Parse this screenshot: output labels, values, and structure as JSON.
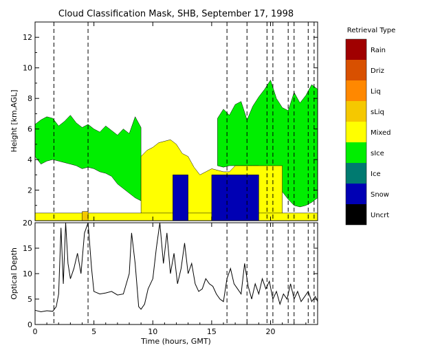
{
  "chart_data": [
    {
      "type": "mask",
      "title": "Cloud Classification Mask, SHB, September 17, 1998",
      "xlabel": "",
      "ylabel": "Height [km,AGL]",
      "xlim": [
        0,
        24
      ],
      "ylim": [
        0,
        13
      ],
      "yticks": [
        2,
        4,
        6,
        8,
        10,
        12
      ],
      "vertical_dashed_lines_hours": [
        1.6,
        4.5,
        16.3,
        18.0,
        19.7,
        20.2,
        21.5,
        22.0,
        23.2,
        23.7
      ],
      "colorbar": {
        "title": "Retrieval Type",
        "categories": [
          {
            "label": "Rain",
            "color": "#a00000"
          },
          {
            "label": "Driz",
            "color": "#d85000"
          },
          {
            "label": "Liq",
            "color": "#ff8800"
          },
          {
            "label": "sLiq",
            "color": "#f5c800"
          },
          {
            "label": "Mixed",
            "color": "#ffff00"
          },
          {
            "label": "sIce",
            "color": "#00ee00"
          },
          {
            "label": "Ice",
            "color": "#007a70"
          },
          {
            "label": "Snow",
            "color": "#0000b4"
          },
          {
            "label": "Uncrt",
            "color": "#000000"
          }
        ]
      },
      "regions": [
        {
          "class": "sIce",
          "x": [
            0,
            0.5,
            1,
            1.5,
            2,
            2.5,
            3,
            3.5,
            4,
            4.5,
            5,
            5.5,
            6,
            6.5,
            7,
            7.5,
            8,
            8.5,
            9,
            9,
            8.5,
            8,
            7.5,
            7,
            6.5,
            6,
            5.5,
            5,
            4.5,
            4,
            3.5,
            3,
            2.5,
            2,
            1.5,
            1,
            0.5,
            0
          ],
          "y": [
            6.3,
            6.6,
            6.8,
            6.7,
            6.2,
            6.5,
            6.9,
            6.4,
            6.1,
            6.3,
            6.0,
            5.8,
            6.2,
            5.9,
            5.6,
            6.0,
            5.7,
            6.8,
            6.1,
            1.3,
            1.5,
            1.8,
            2.1,
            2.4,
            2.9,
            3.1,
            3.2,
            3.4,
            3.5,
            3.4,
            3.6,
            3.7,
            3.8,
            3.9,
            4.0,
            3.9,
            3.7,
            4.2
          ]
        },
        {
          "class": "sIce",
          "x": [
            15.5,
            16,
            16.5,
            17,
            17.5,
            18,
            18.5,
            19,
            19.5,
            20,
            20.5,
            21,
            21.5,
            22,
            22.5,
            23,
            23.5,
            24,
            24,
            23.5,
            23,
            22.5,
            22,
            21.5,
            21,
            20.5,
            20,
            19.5,
            19,
            18.5,
            18,
            17.5,
            17,
            16.5,
            16,
            15.5
          ],
          "y": [
            6.7,
            7.3,
            6.9,
            7.6,
            7.8,
            6.6,
            7.5,
            8.1,
            8.6,
            9.2,
            8.0,
            7.4,
            7.2,
            8.4,
            7.7,
            8.2,
            8.9,
            8.6,
            1.5,
            1.2,
            1.0,
            0.9,
            1.0,
            1.4,
            1.9,
            2.4,
            3.0,
            3.4,
            3.6,
            3.6,
            3.6,
            3.6,
            3.6,
            3.6,
            3.5,
            3.6
          ]
        },
        {
          "class": "Mixed",
          "x": [
            9,
            9.5,
            10,
            10.5,
            11,
            11.5,
            12,
            12.5,
            13,
            13.5,
            14,
            14.5,
            15,
            15.5,
            16,
            16.5,
            17,
            17.5,
            18,
            18.5,
            19,
            19.5,
            20,
            20.5,
            21,
            21,
            9,
            9
          ],
          "y": [
            4.2,
            4.6,
            4.8,
            5.1,
            5.2,
            5.3,
            5.0,
            4.4,
            4.2,
            3.5,
            3.0,
            3.2,
            3.4,
            3.3,
            3.2,
            3.2,
            3.6,
            3.6,
            3.6,
            3.6,
            3.6,
            3.6,
            3.6,
            3.6,
            3.6,
            0,
            0,
            4.2
          ]
        },
        {
          "class": "Mixed",
          "x": [
            0,
            24,
            24,
            0
          ],
          "y": [
            0,
            0,
            0.5,
            0.5
          ]
        },
        {
          "class": "sLiq",
          "x": [
            4,
            4.5,
            4.5,
            4
          ],
          "y": [
            0,
            0,
            0.6,
            0.6
          ]
        },
        {
          "class": "Snow",
          "x": [
            11.7,
            13,
            13,
            11.7
          ],
          "y": [
            0,
            0,
            3.0,
            3.0
          ]
        },
        {
          "class": "Snow",
          "x": [
            15,
            19,
            19,
            15
          ],
          "y": [
            0,
            0,
            3.0,
            3.0
          ]
        }
      ]
    },
    {
      "type": "line",
      "xlabel": "Time (hours, GMT)",
      "ylabel": "Optical Depth",
      "xlim": [
        0,
        24
      ],
      "ylim": [
        0,
        20
      ],
      "xticks": [
        0,
        5,
        10,
        15,
        20
      ],
      "yticks": [
        0,
        5,
        10,
        15,
        20
      ],
      "vertical_dashed_lines_hours": [
        1.6,
        4.5,
        16.3,
        18.0,
        19.7,
        20.2,
        21.5,
        22.0,
        23.2,
        23.7
      ],
      "series": [
        {
          "x": [
            0,
            0.5,
            1,
            1.5,
            1.8,
            2,
            2.2,
            2.4,
            2.6,
            2.8,
            3,
            3.3,
            3.6,
            3.9,
            4.2,
            4.5,
            4.8,
            5,
            5.5,
            6,
            6.5,
            7,
            7.5,
            8,
            8.2,
            8.5,
            8.8,
            9,
            9.3,
            9.6,
            10,
            10.3,
            10.6,
            10.9,
            11.2,
            11.5,
            11.8,
            12.1,
            12.4,
            12.7,
            13,
            13.3,
            13.6,
            13.9,
            14.2,
            14.5,
            14.8,
            15.1,
            15.4,
            15.7,
            16,
            16.3,
            16.6,
            16.9,
            17.2,
            17.5,
            17.8,
            18.1,
            18.4,
            18.7,
            19,
            19.3,
            19.6,
            19.9,
            20.2,
            20.5,
            20.8,
            21.1,
            21.4,
            21.7,
            22,
            22.3,
            22.6,
            22.9,
            23.2,
            23.5,
            23.8,
            24
          ],
          "y": [
            2.8,
            2.5,
            2.7,
            2.6,
            3.5,
            6.0,
            19.0,
            8.0,
            20.0,
            12.0,
            9.0,
            11.0,
            14.0,
            10.0,
            18.0,
            20.0,
            11.0,
            6.5,
            6.0,
            6.2,
            6.5,
            5.8,
            6.0,
            10.0,
            18.0,
            12.0,
            3.5,
            3.0,
            4.0,
            7.0,
            9.0,
            15.0,
            20.0,
            12.0,
            18.0,
            10.0,
            14.0,
            8.0,
            11.0,
            16.0,
            10.0,
            12.0,
            8.0,
            6.5,
            7.0,
            9.0,
            8.0,
            7.5,
            6.0,
            5.0,
            4.5,
            9.0,
            11.0,
            8.0,
            7.0,
            6.0,
            12.0,
            7.5,
            5.0,
            8.0,
            6.0,
            9.0,
            7.0,
            8.5,
            5.0,
            6.5,
            4.0,
            6.0,
            5.0,
            8.0,
            5.0,
            6.5,
            4.5,
            5.5,
            6.5,
            4.5,
            5.5,
            4.5
          ]
        }
      ]
    }
  ]
}
